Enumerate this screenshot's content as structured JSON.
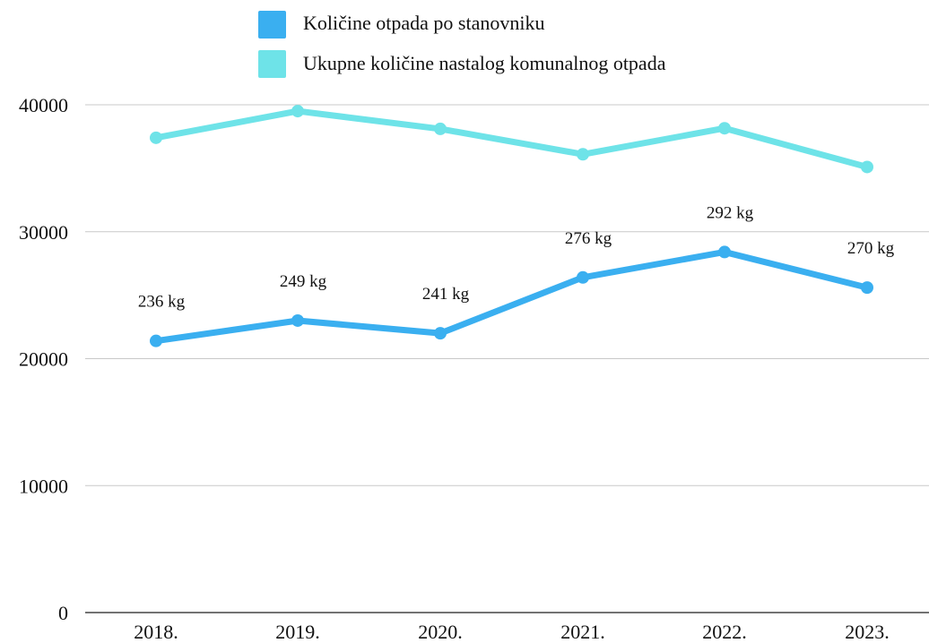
{
  "chart_data": {
    "type": "line",
    "categories": [
      "2018.",
      "2019.",
      "2020.",
      "2021.",
      "2022.",
      "2023."
    ],
    "ylim": [
      0,
      40000
    ],
    "yticks": [
      "0",
      "10000",
      "20000",
      "30000",
      "40000"
    ],
    "ytick_values": [
      0,
      10000,
      20000,
      30000,
      40000
    ],
    "grid": true,
    "legend_position": "top",
    "series": [
      {
        "name": "Količine otpada po stanovniku",
        "color": "#3aaff0",
        "values": [
          21400,
          23000,
          22000,
          26400,
          28400,
          25600
        ],
        "labels": [
          "236 kg",
          "249 kg",
          "241 kg",
          "276 kg",
          "292 kg",
          "270 kg"
        ]
      },
      {
        "name": "Ukupne količine nastalog komunalnog otpada",
        "color": "#6ee3e8",
        "values": [
          37400,
          39500,
          38100,
          36100,
          38150,
          35100
        ]
      }
    ]
  }
}
